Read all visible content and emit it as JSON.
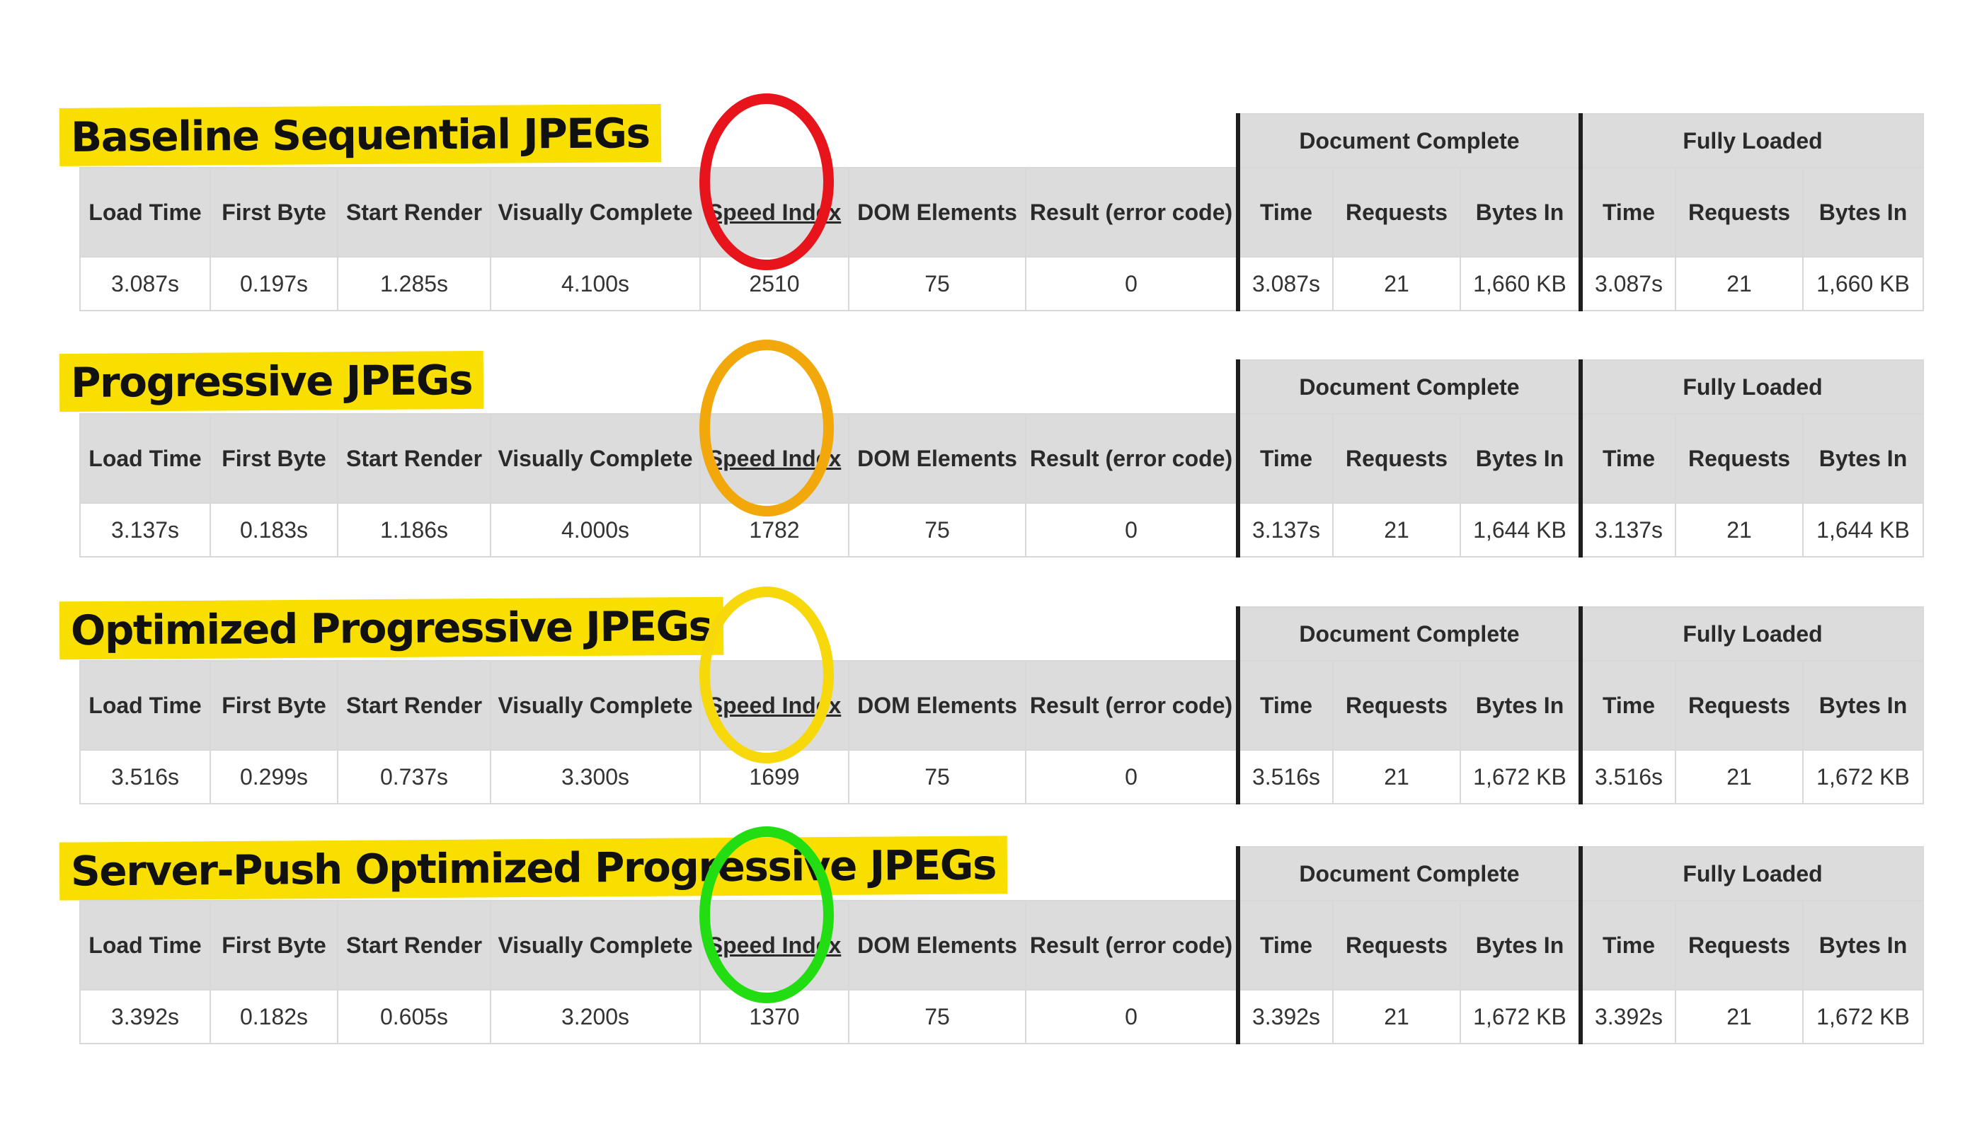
{
  "headers": {
    "load_time": "Load Time",
    "first_byte": "First Byte",
    "start_render": "Start Render",
    "visually_complete": "Visually Complete",
    "speed_index": "Speed Index",
    "dom_elements": "DOM Elements",
    "result": "Result (error code)",
    "document_complete": "Document Complete",
    "fully_loaded": "Fully Loaded",
    "time": "Time",
    "requests": "Requests",
    "bytes_in": "Bytes In"
  },
  "tests": [
    {
      "title": "Baseline Sequential JPEGs",
      "circle_color": "#e8141c",
      "load_time": "3.087s",
      "first_byte": "0.197s",
      "start_render": "1.285s",
      "visually_complete": "4.100s",
      "speed_index": "2510",
      "dom_elements": "75",
      "result": "0",
      "doc_time": "3.087s",
      "doc_requests": "21",
      "doc_bytes": "1,660 KB",
      "full_time": "3.087s",
      "full_requests": "21",
      "full_bytes": "1,660 KB"
    },
    {
      "title": "Progressive JPEGs",
      "circle_color": "#f2a80a",
      "load_time": "3.137s",
      "first_byte": "0.183s",
      "start_render": "1.186s",
      "visually_complete": "4.000s",
      "speed_index": "1782",
      "dom_elements": "75",
      "result": "0",
      "doc_time": "3.137s",
      "doc_requests": "21",
      "doc_bytes": "1,644 KB",
      "full_time": "3.137s",
      "full_requests": "21",
      "full_bytes": "1,644 KB"
    },
    {
      "title": "Optimized Progressive JPEGs",
      "circle_color": "#f7d80a",
      "load_time": "3.516s",
      "first_byte": "0.299s",
      "start_render": "0.737s",
      "visually_complete": "3.300s",
      "speed_index": "1699",
      "dom_elements": "75",
      "result": "0",
      "doc_time": "3.516s",
      "doc_requests": "21",
      "doc_bytes": "1,672 KB",
      "full_time": "3.516s",
      "full_requests": "21",
      "full_bytes": "1,672 KB"
    },
    {
      "title": "Server-Push Optimized Progressive JPEGs",
      "circle_color": "#22dd11",
      "load_time": "3.392s",
      "first_byte": "0.182s",
      "start_render": "0.605s",
      "visually_complete": "3.200s",
      "speed_index": "1370",
      "dom_elements": "75",
      "result": "0",
      "doc_time": "3.392s",
      "doc_requests": "21",
      "doc_bytes": "1,672 KB",
      "full_time": "3.392s",
      "full_requests": "21",
      "full_bytes": "1,672 KB"
    }
  ]
}
